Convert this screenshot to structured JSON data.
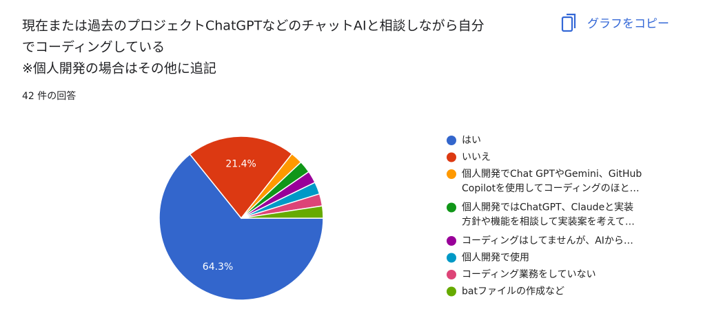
{
  "chart_data": {
    "type": "pie",
    "title_lines": [
      "現在または過去のプロジェクトChatGPTなどのチャットAIと相談しながら自分",
      "でコーディングしている",
      "※個人開発の場合はその他に追記"
    ],
    "subtitle": "42 件の回答",
    "copy_button": "グラフをコピー",
    "categories": [
      "はい",
      "いいえ",
      "個人開発でChat GPTやGemini、GitHub Copilotを使用してコーディングのほと…",
      "個人開発ではChatGPT、Claudeと実装方針や機能を相談して実装案を考えて…",
      "コーディングはしてませんが、AIから…",
      "個人開発で使用",
      "コーディング業務をしていない",
      "batファイルの作成など"
    ],
    "legend_lines": [
      [
        "はい"
      ],
      [
        "いいえ"
      ],
      [
        "個人開発でChat GPTやGemini、GitHub",
        "Copilotを使用してコーディングのほと…"
      ],
      [
        "個人開発ではChatGPT、Claudeと実装",
        "方針や機能を相談して実装案を考えて…"
      ],
      [
        "コーディングはしてませんが、AIから…"
      ],
      [
        "個人開発で使用"
      ],
      [
        "コーディング業務をしていない"
      ],
      [
        "batファイルの作成など"
      ]
    ],
    "values": [
      64.3,
      21.4,
      2.4,
      2.4,
      2.4,
      2.4,
      2.4,
      2.4
    ],
    "value_labels": [
      "64.3%",
      "21.4%",
      null,
      null,
      null,
      null,
      null,
      null
    ],
    "colors": [
      "#3366cc",
      "#dc3912",
      "#ff9900",
      "#109618",
      "#990099",
      "#0099c6",
      "#dd4477",
      "#66aa00"
    ],
    "legend_position": "right"
  }
}
